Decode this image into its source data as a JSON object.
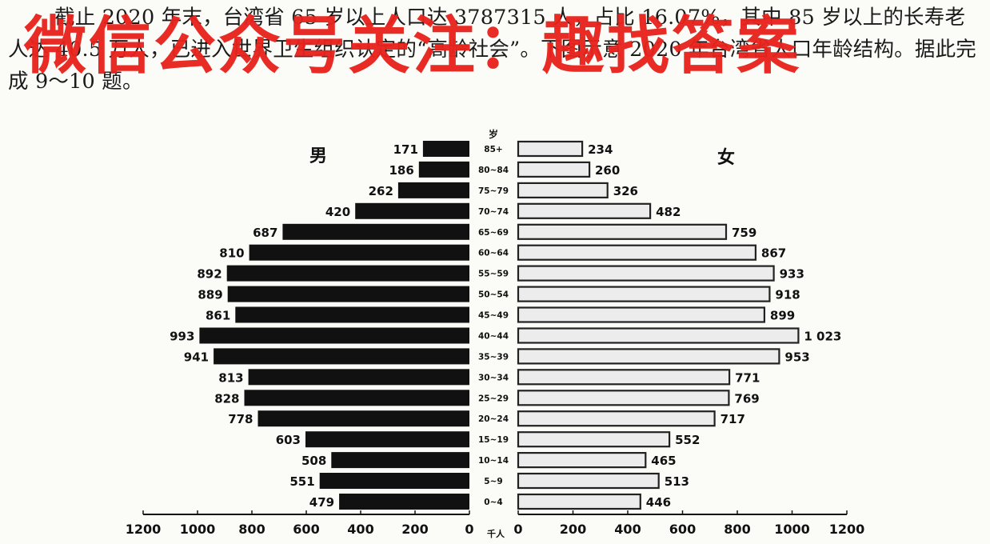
{
  "passage": "截止 2020 年末，台湾省 65 岁以上人口达 3787315 人，占比 16.07%，其中 85 岁以上的长寿老人达 40.5 万人，已进入世界卫生组织认定的“高龄社会”。下图示意 2020 年台湾省人口年龄结构。据此完成 9～10 题。",
  "watermark": "微信公众号关注：趣找答案",
  "colors": {
    "male_bar": "#111111",
    "female_fill": "#ececec",
    "female_stroke": "#222222",
    "watermark": "#e8231c"
  },
  "chart_data": {
    "type": "bar",
    "orientation": "horizontal-population-pyramid",
    "age_axis_title": "岁",
    "unit_label": "千人",
    "categories": [
      "85+",
      "80~84",
      "75~79",
      "70~74",
      "65~69",
      "60~64",
      "55~59",
      "50~54",
      "45~49",
      "40~44",
      "35~39",
      "30~34",
      "25~29",
      "20~24",
      "15~19",
      "10~14",
      "5~9",
      "0~4"
    ],
    "series": [
      {
        "name": "男",
        "values": [
          171,
          186,
          262,
          420,
          687,
          810,
          892,
          889,
          861,
          993,
          941,
          813,
          828,
          778,
          603,
          508,
          551,
          479
        ],
        "labels": [
          "171",
          "186",
          "262",
          "420",
          "687",
          "810",
          "892",
          "889",
          "861",
          "993",
          "941",
          "813",
          "828",
          "778",
          "603",
          "508",
          "551",
          "479"
        ]
      },
      {
        "name": "女",
        "values": [
          234,
          260,
          326,
          482,
          759,
          867,
          933,
          918,
          899,
          1023,
          953,
          771,
          769,
          717,
          552,
          465,
          513,
          446
        ],
        "labels": [
          "234",
          "260",
          "326",
          "482",
          "759",
          "867",
          "933",
          "918",
          "899",
          "1 023",
          "953",
          "771",
          "769",
          "717",
          "552",
          "465",
          "513",
          "446"
        ]
      }
    ],
    "xlim": [
      0,
      1200
    ],
    "male_ticks": [
      "1200",
      "1000",
      "800",
      "600",
      "400",
      "200",
      "0"
    ],
    "female_ticks": [
      "0",
      "200",
      "400",
      "600",
      "800",
      "1000",
      "1200"
    ],
    "tick_values": [
      1200,
      1000,
      800,
      600,
      400,
      200,
      0
    ]
  }
}
